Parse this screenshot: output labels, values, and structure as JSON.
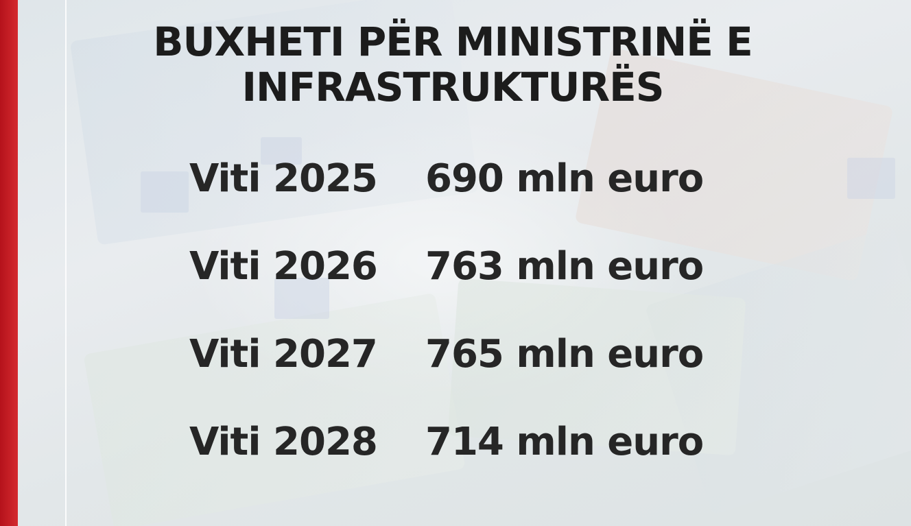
{
  "title": {
    "line1": "BUXHETI PËR MINISTRINË E",
    "line2": "INFRASTRUKTURËS"
  },
  "rows": [
    {
      "year": "Viti 2025",
      "amount": "690 mln euro"
    },
    {
      "year": "Viti 2026",
      "amount": "763 mln euro"
    },
    {
      "year": "Viti 2027",
      "amount": "765 mln euro"
    },
    {
      "year": "Viti 2028",
      "amount": "714 mln euro"
    }
  ],
  "colors": {
    "accent_bar": "#c81e26",
    "text": "#262626",
    "background": "#e4e8ea"
  }
}
